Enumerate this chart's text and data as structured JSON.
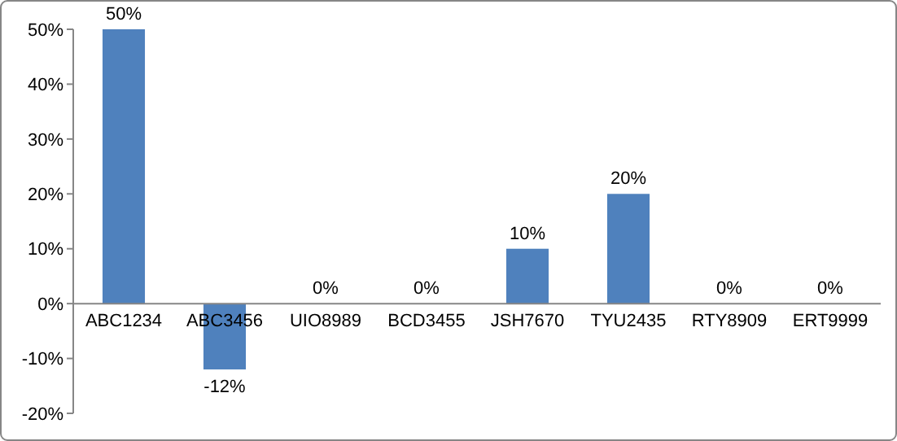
{
  "chart_data": {
    "type": "bar",
    "categories": [
      "ABC1234",
      "ABC3456",
      "UIO8989",
      "BCD3455",
      "JSH7670",
      "TYU2435",
      "RTY8909",
      "ERT9999"
    ],
    "values": [
      50,
      -12,
      0,
      0,
      10,
      20,
      0,
      0
    ],
    "value_labels": [
      "50%",
      "-12%",
      "0%",
      "0%",
      "10%",
      "20%",
      "0%",
      "0%"
    ],
    "color": "#4f81bd",
    "ylim": [
      -20,
      50
    ],
    "yticks": [
      {
        "value": -20,
        "label": "-20%"
      },
      {
        "value": -10,
        "label": "-10%"
      },
      {
        "value": 0,
        "label": "0%"
      },
      {
        "value": 10,
        "label": "10%"
      },
      {
        "value": 20,
        "label": "20%"
      },
      {
        "value": 30,
        "label": "30%"
      },
      {
        "value": 40,
        "label": "40%"
      },
      {
        "value": 50,
        "label": "50%"
      }
    ],
    "grid": false
  }
}
